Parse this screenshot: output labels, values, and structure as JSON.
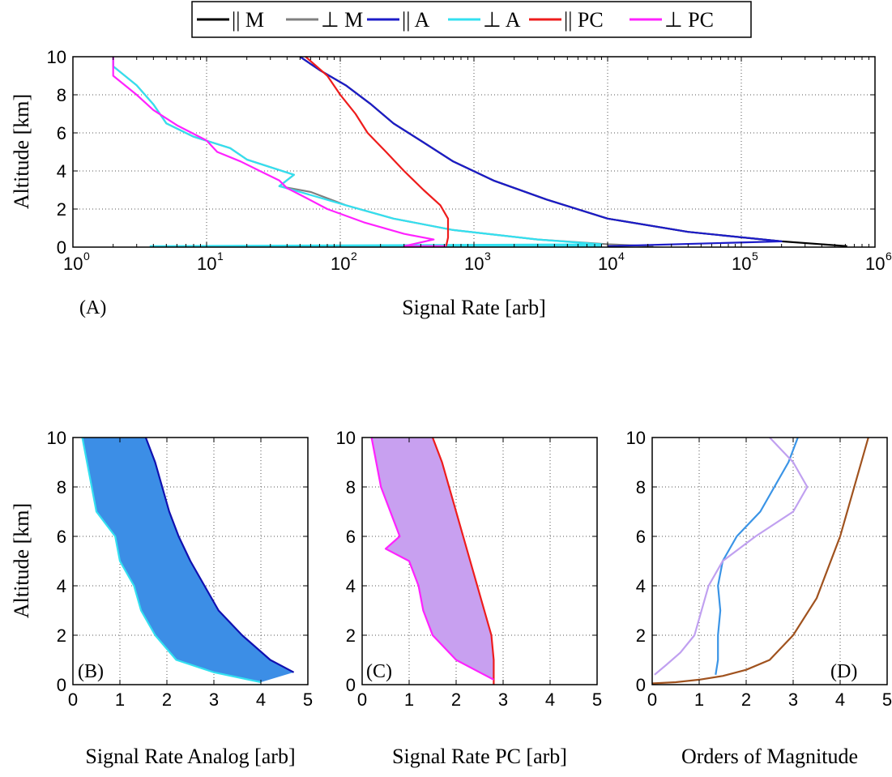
{
  "chart_data": [
    {
      "panel": "A",
      "type": "line",
      "annotation": "(A)",
      "xlabel": "Signal Rate [arb]",
      "ylabel": "Altitude [km]",
      "x_scale": "log",
      "xlim": [
        1,
        1000000
      ],
      "ylim": [
        0,
        10
      ],
      "x_ticks": [
        1,
        10,
        100,
        1000,
        10000,
        100000,
        1000000
      ],
      "x_tick_labels": [
        {
          "base": "10",
          "exp": "0"
        },
        {
          "base": "10",
          "exp": "1"
        },
        {
          "base": "10",
          "exp": "2"
        },
        {
          "base": "10",
          "exp": "3"
        },
        {
          "base": "10",
          "exp": "4"
        },
        {
          "base": "10",
          "exp": "5"
        },
        {
          "base": "10",
          "exp": "6"
        }
      ],
      "y_ticks": [
        0,
        2,
        4,
        6,
        8,
        10
      ],
      "grid": true,
      "legend": {
        "placement": "top-outside"
      },
      "series": [
        {
          "name": "|| M",
          "color": "#000000",
          "points": [
            [
              620000,
              0.05
            ],
            [
              200000,
              0.3
            ],
            [
              40000,
              0.8
            ],
            [
              10000,
              1.5
            ],
            [
              3500,
              2.5
            ],
            [
              1400,
              3.5
            ],
            [
              700,
              4.5
            ],
            [
              420,
              5.5
            ],
            [
              250,
              6.5
            ],
            [
              170,
              7.5
            ],
            [
              110,
              8.5
            ],
            [
              70,
              9.3
            ],
            [
              50,
              10
            ]
          ]
        },
        {
          "name": "⊥ M",
          "color": "#808080",
          "points": [
            [
              22000,
              0.05
            ],
            [
              10000,
              0.15
            ],
            [
              3000,
              0.4
            ],
            [
              700,
              0.9
            ],
            [
              250,
              1.5
            ],
            [
              110,
              2.2
            ],
            [
              60,
              2.9
            ],
            [
              35,
              3.2
            ],
            [
              45,
              3.8
            ],
            [
              30,
              4.2
            ],
            [
              20,
              4.6
            ],
            [
              15,
              5.2
            ],
            [
              8,
              5.8
            ],
            [
              5,
              6.5
            ],
            [
              4,
              7.5
            ],
            [
              3,
              8.5
            ],
            [
              2,
              9.5
            ],
            [
              2,
              10
            ]
          ]
        },
        {
          "name": "|| A",
          "color": "#1c1cc8",
          "points": [
            [
              10000,
              0.05
            ],
            [
              200000,
              0.3
            ],
            [
              40000,
              0.8
            ],
            [
              10000,
              1.5
            ],
            [
              3500,
              2.5
            ],
            [
              1400,
              3.5
            ],
            [
              700,
              4.5
            ],
            [
              420,
              5.5
            ],
            [
              250,
              6.5
            ],
            [
              170,
              7.5
            ],
            [
              110,
              8.5
            ],
            [
              70,
              9.3
            ],
            [
              50,
              10
            ]
          ]
        },
        {
          "name": "⊥ A",
          "color": "#33e0f0",
          "points": [
            [
              9000,
              0.05
            ],
            [
              3.8,
              0.05
            ],
            [
              9000,
              0.15
            ],
            [
              3000,
              0.4
            ],
            [
              700,
              0.9
            ],
            [
              250,
              1.5
            ],
            [
              110,
              2.2
            ],
            [
              50,
              2.9
            ],
            [
              35,
              3.2
            ],
            [
              45,
              3.8
            ],
            [
              30,
              4.2
            ],
            [
              20,
              4.6
            ],
            [
              15,
              5.2
            ],
            [
              8,
              5.8
            ],
            [
              5,
              6.5
            ],
            [
              4,
              7.5
            ],
            [
              3,
              8.5
            ],
            [
              2,
              9.5
            ],
            [
              2,
              10
            ]
          ]
        },
        {
          "name": "|| PC",
          "color": "#ee1c1c",
          "points": [
            [
              620,
              0.05
            ],
            [
              640,
              0.5
            ],
            [
              640,
              1.5
            ],
            [
              560,
              2.2
            ],
            [
              420,
              3
            ],
            [
              300,
              4
            ],
            [
              220,
              5
            ],
            [
              160,
              6
            ],
            [
              130,
              7
            ],
            [
              100,
              8
            ],
            [
              80,
              9
            ],
            [
              55,
              10
            ]
          ]
        },
        {
          "name": "⊥ PC",
          "color": "#ff22ff",
          "points": [
            [
              620,
              0.05
            ],
            [
              300,
              0.05
            ],
            [
              500,
              0.4
            ],
            [
              300,
              0.7
            ],
            [
              150,
              1.3
            ],
            [
              80,
              2
            ],
            [
              55,
              2.6
            ],
            [
              40,
              3.1
            ],
            [
              35,
              3.5
            ],
            [
              25,
              4
            ],
            [
              18,
              4.5
            ],
            [
              12,
              5
            ],
            [
              10,
              5.6
            ],
            [
              6,
              6.4
            ],
            [
              4,
              7.2
            ],
            [
              3,
              8
            ],
            [
              2,
              9
            ],
            [
              2,
              10
            ]
          ]
        }
      ]
    },
    {
      "panel": "B",
      "type": "area",
      "annotation": "(B)",
      "xlabel": "Signal Rate Analog [arb]",
      "ylabel": "Altitude [km]",
      "xlim": [
        0,
        5
      ],
      "ylim": [
        0,
        10
      ],
      "x_ticks": [
        0,
        1,
        2,
        3,
        4,
        5
      ],
      "y_ticks": [
        0,
        2,
        4,
        6,
        8,
        10
      ],
      "grid": true,
      "fill_color": "#3c8ee6",
      "series": [
        {
          "color": "#1010b0",
          "points": [
            [
              4.7,
              0.5
            ],
            [
              4.2,
              1
            ],
            [
              3.6,
              2
            ],
            [
              3.1,
              3
            ],
            [
              2.8,
              4
            ],
            [
              2.5,
              5
            ],
            [
              2.25,
              6
            ],
            [
              2.05,
              7
            ],
            [
              1.9,
              8
            ],
            [
              1.75,
              9
            ],
            [
              1.55,
              10
            ]
          ]
        },
        {
          "color": "#33e0f0",
          "points": [
            [
              4.0,
              0.1
            ],
            [
              3.0,
              0.5
            ],
            [
              2.2,
              1
            ],
            [
              1.75,
              2
            ],
            [
              1.45,
              3
            ],
            [
              1.3,
              4
            ],
            [
              1.0,
              5
            ],
            [
              0.9,
              6
            ],
            [
              0.5,
              7
            ],
            [
              0.4,
              8
            ],
            [
              0.3,
              9
            ],
            [
              0.2,
              10
            ]
          ]
        }
      ]
    },
    {
      "panel": "C",
      "type": "area",
      "annotation": "(C)",
      "xlabel": "Signal Rate PC [arb]",
      "ylabel": "",
      "xlim": [
        0,
        5
      ],
      "ylim": [
        0,
        10
      ],
      "x_ticks": [
        0,
        1,
        2,
        3,
        4,
        5
      ],
      "y_ticks": [
        0,
        2,
        4,
        6,
        8,
        10
      ],
      "grid": true,
      "fill_color": "#c8a0f0",
      "series": [
        {
          "color": "#ee1c1c",
          "points": [
            [
              2.8,
              0
            ],
            [
              2.8,
              1
            ],
            [
              2.75,
              2
            ],
            [
              2.6,
              3
            ],
            [
              2.45,
              4
            ],
            [
              2.3,
              5
            ],
            [
              2.15,
              6
            ],
            [
              2.0,
              7
            ],
            [
              1.85,
              8
            ],
            [
              1.7,
              9
            ],
            [
              1.5,
              10
            ]
          ]
        },
        {
          "color": "#ff22ff",
          "points": [
            [
              2.8,
              0.2
            ],
            [
              2.5,
              0.5
            ],
            [
              2.0,
              1
            ],
            [
              1.5,
              2
            ],
            [
              1.3,
              3
            ],
            [
              1.2,
              4
            ],
            [
              1.0,
              5
            ],
            [
              0.5,
              5.5
            ],
            [
              0.8,
              6
            ],
            [
              0.6,
              7
            ],
            [
              0.4,
              8
            ],
            [
              0.3,
              9
            ],
            [
              0.2,
              10
            ]
          ]
        }
      ]
    },
    {
      "panel": "D",
      "type": "line",
      "annotation": "(D)",
      "xlabel": "Orders of Magnitude",
      "ylabel": "",
      "xlim": [
        0,
        5
      ],
      "ylim": [
        0,
        10
      ],
      "x_ticks": [
        0,
        1,
        2,
        3,
        4,
        5
      ],
      "y_ticks": [
        0,
        2,
        4,
        6,
        8,
        10
      ],
      "grid": true,
      "series": [
        {
          "color": "#3a94e6",
          "points": [
            [
              1.35,
              0.4
            ],
            [
              1.4,
              1
            ],
            [
              1.4,
              2
            ],
            [
              1.45,
              3
            ],
            [
              1.4,
              4
            ],
            [
              1.5,
              5
            ],
            [
              1.8,
              6
            ],
            [
              2.3,
              7
            ],
            [
              2.6,
              8
            ],
            [
              2.9,
              9
            ],
            [
              3.1,
              10
            ]
          ]
        },
        {
          "color": "#c0a0f0",
          "points": [
            [
              0.05,
              0.4
            ],
            [
              0.3,
              0.8
            ],
            [
              0.6,
              1.3
            ],
            [
              0.9,
              2
            ],
            [
              1.05,
              3
            ],
            [
              1.2,
              4
            ],
            [
              1.5,
              5
            ],
            [
              2.2,
              6
            ],
            [
              3.0,
              7
            ],
            [
              3.3,
              8
            ],
            [
              3.0,
              9
            ],
            [
              2.5,
              10
            ]
          ]
        },
        {
          "color": "#a0521e",
          "points": [
            [
              0,
              0.05
            ],
            [
              0.5,
              0.1
            ],
            [
              1.0,
              0.2
            ],
            [
              1.5,
              0.35
            ],
            [
              2.0,
              0.6
            ],
            [
              2.5,
              1.0
            ],
            [
              3.0,
              2.0
            ],
            [
              3.5,
              3.5
            ],
            [
              4.0,
              6.0
            ],
            [
              4.3,
              8.0
            ],
            [
              4.6,
              10
            ]
          ]
        }
      ]
    }
  ]
}
